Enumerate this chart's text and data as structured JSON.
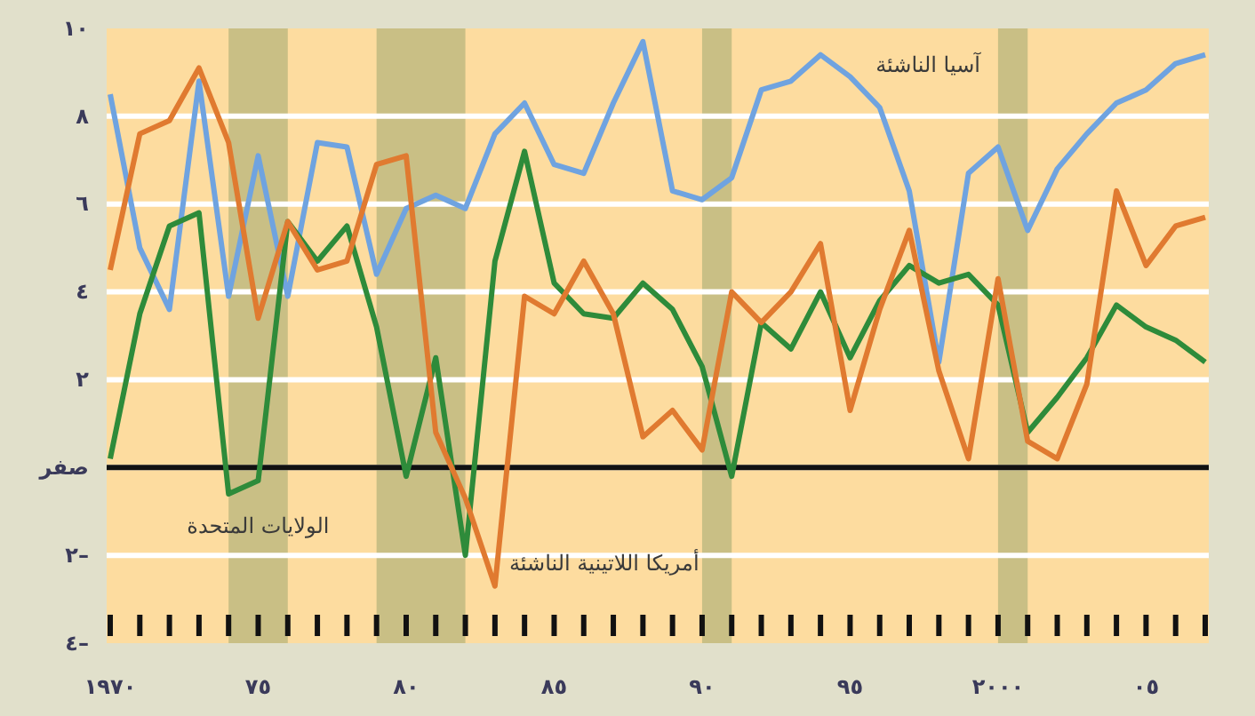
{
  "chart_data": {
    "type": "line",
    "x": [
      1970,
      1971,
      1972,
      1973,
      1974,
      1975,
      1976,
      1977,
      1978,
      1979,
      1980,
      1981,
      1982,
      1983,
      1984,
      1985,
      1986,
      1987,
      1988,
      1989,
      1990,
      1991,
      1992,
      1993,
      1994,
      1995,
      1996,
      1997,
      1998,
      1999,
      2000,
      2001,
      2002,
      2003,
      2004,
      2005,
      2006,
      2007
    ],
    "series": [
      {
        "name": "آسيا الناشئة",
        "color": "#6fa3e0",
        "values": [
          8.5,
          5.0,
          3.6,
          8.8,
          3.9,
          7.1,
          3.9,
          7.4,
          7.3,
          4.4,
          5.9,
          6.2,
          5.9,
          7.6,
          8.3,
          6.9,
          6.7,
          8.3,
          9.7,
          6.3,
          6.1,
          6.6,
          8.6,
          8.8,
          9.4,
          8.9,
          8.2,
          6.3,
          2.4,
          6.7,
          7.3,
          5.4,
          6.8,
          7.6,
          8.3,
          8.6,
          9.2,
          9.4
        ]
      },
      {
        "name": "الولايات المتحدة",
        "color": "#2e8b3a",
        "values": [
          0.2,
          3.5,
          5.5,
          5.8,
          -0.6,
          -0.3,
          5.6,
          4.7,
          5.5,
          3.2,
          -0.2,
          2.5,
          -2.0,
          4.7,
          7.2,
          4.2,
          3.5,
          3.4,
          4.2,
          3.6,
          2.3,
          -0.2,
          3.3,
          2.7,
          4.0,
          2.5,
          3.8,
          4.6,
          4.2,
          4.4,
          3.7,
          0.8,
          1.6,
          2.5,
          3.7,
          3.2,
          2.9,
          2.4
        ]
      },
      {
        "name": "أمريكا اللاتينية الناشئة",
        "color": "#e07a30",
        "values": [
          4.5,
          7.6,
          7.9,
          9.1,
          7.4,
          3.4,
          5.6,
          4.5,
          4.7,
          6.9,
          7.1,
          0.8,
          -0.7,
          -2.7,
          3.9,
          3.5,
          4.7,
          3.5,
          0.7,
          1.3,
          0.4,
          4.0,
          3.3,
          4.0,
          5.1,
          1.3,
          3.6,
          5.4,
          2.2,
          0.2,
          4.3,
          0.6,
          0.2,
          1.9,
          6.3,
          4.6,
          5.5,
          5.7
        ]
      }
    ],
    "xlim": [
      1970,
      2007
    ],
    "xticks": [
      {
        "value": 1970,
        "label": "١٩٧٠"
      },
      {
        "value": 1971,
        "label": null
      },
      {
        "value": 1972,
        "label": null
      },
      {
        "value": 1973,
        "label": null
      },
      {
        "value": 1974,
        "label": null
      },
      {
        "value": 1975,
        "label": "٧٥"
      },
      {
        "value": 1976,
        "label": null
      },
      {
        "value": 1977,
        "label": null
      },
      {
        "value": 1978,
        "label": null
      },
      {
        "value": 1979,
        "label": null
      },
      {
        "value": 1980,
        "label": "٨٠"
      },
      {
        "value": 1981,
        "label": null
      },
      {
        "value": 1982,
        "label": null
      },
      {
        "value": 1983,
        "label": null
      },
      {
        "value": 1984,
        "label": null
      },
      {
        "value": 1985,
        "label": "٨٥"
      },
      {
        "value": 1986,
        "label": null
      },
      {
        "value": 1987,
        "label": null
      },
      {
        "value": 1988,
        "label": null
      },
      {
        "value": 1989,
        "label": null
      },
      {
        "value": 1990,
        "label": "٩٠"
      },
      {
        "value": 1991,
        "label": null
      },
      {
        "value": 1992,
        "label": null
      },
      {
        "value": 1993,
        "label": null
      },
      {
        "value": 1994,
        "label": null
      },
      {
        "value": 1995,
        "label": "٩٥"
      },
      {
        "value": 1996,
        "label": null
      },
      {
        "value": 1997,
        "label": null
      },
      {
        "value": 1998,
        "label": null
      },
      {
        "value": 1999,
        "label": null
      },
      {
        "value": 2000,
        "label": "٢٠٠٠"
      },
      {
        "value": 2001,
        "label": null
      },
      {
        "value": 2002,
        "label": null
      },
      {
        "value": 2003,
        "label": null
      },
      {
        "value": 2004,
        "label": null
      },
      {
        "value": 2005,
        "label": "٠٥"
      },
      {
        "value": 2006,
        "label": null
      },
      {
        "value": 2007,
        "label": null
      }
    ],
    "ylim": [
      -4,
      10
    ],
    "yticks": [
      {
        "value": -4,
        "label": "٤–"
      },
      {
        "value": -2,
        "label": "٢–"
      },
      {
        "value": 0,
        "label": "صفر"
      },
      {
        "value": 2,
        "label": "٢"
      },
      {
        "value": 4,
        "label": "٤"
      },
      {
        "value": 6,
        "label": "٦"
      },
      {
        "value": 8,
        "label": "٨"
      },
      {
        "value": 10,
        "label": "١٠"
      }
    ],
    "grid": "y",
    "legend": false,
    "marker": "none",
    "line_style": "solid",
    "ref_lines": [
      {
        "axis": "y",
        "value": 0,
        "color": "#111111"
      }
    ],
    "bands": [
      {
        "axis": "x",
        "from": 1974,
        "to": 1976,
        "color": "#c9bf85"
      },
      {
        "axis": "x",
        "from": 1979,
        "to": 1982,
        "color": "#c9bf85"
      },
      {
        "axis": "x",
        "from": 1990,
        "to": 1991,
        "color": "#c9bf85"
      },
      {
        "axis": "x",
        "from": 2000,
        "to": 2001,
        "color": "#c9bf85"
      }
    ]
  }
}
